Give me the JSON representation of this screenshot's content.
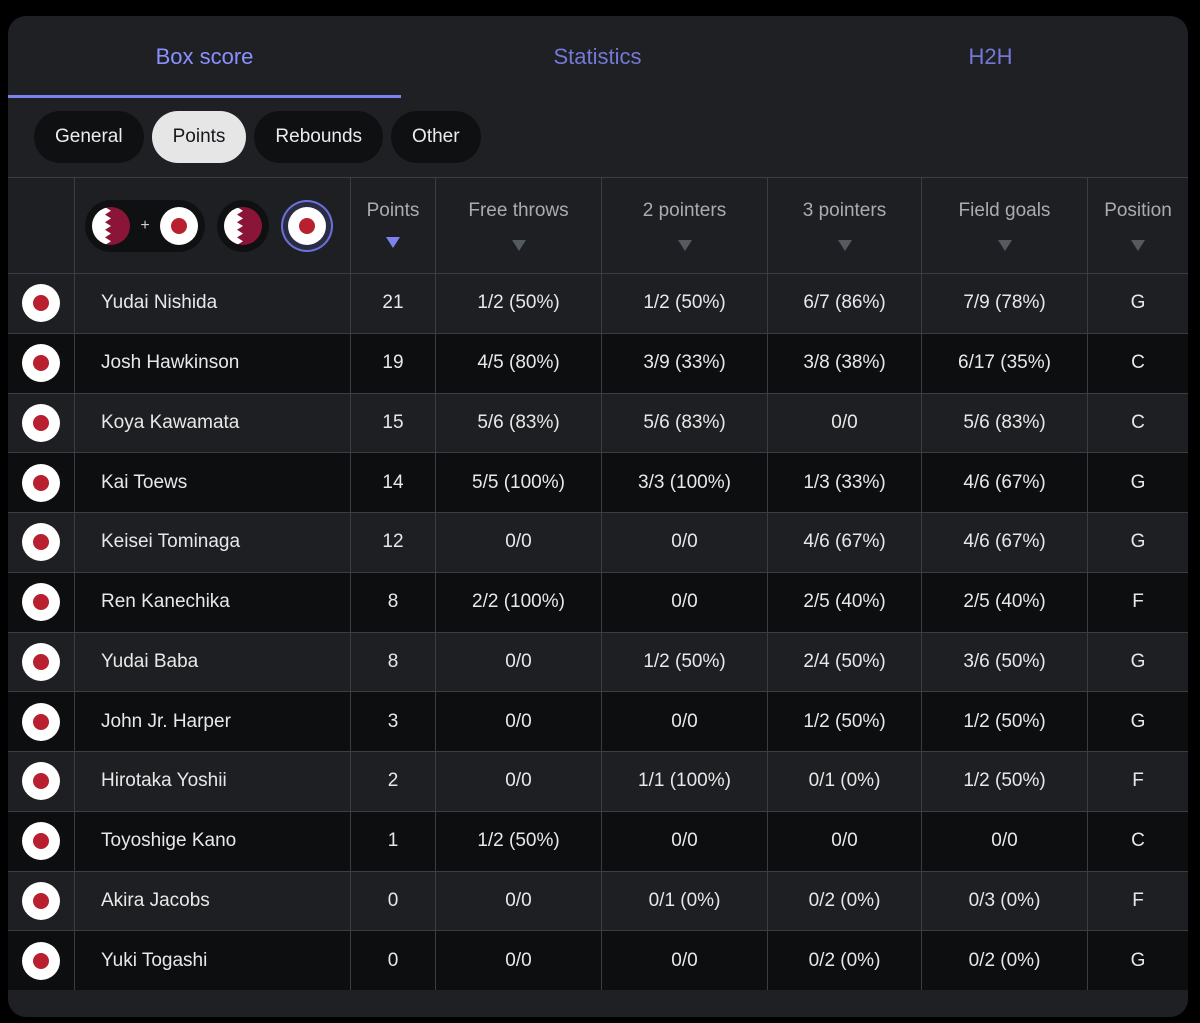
{
  "tabs": [
    {
      "label": "Box score",
      "active": true
    },
    {
      "label": "Statistics",
      "active": false
    },
    {
      "label": "H2H",
      "active": false
    }
  ],
  "pills": [
    {
      "label": "General",
      "active": false
    },
    {
      "label": "Points",
      "active": true
    },
    {
      "label": "Rebounds",
      "active": false
    },
    {
      "label": "Other",
      "active": false
    }
  ],
  "team_filters": [
    {
      "icon": "qatar-flag-plus-japan-flag-icon",
      "selected": false
    },
    {
      "icon": "qatar-flag-icon",
      "selected": false
    },
    {
      "icon": "japan-flag-icon",
      "selected": true
    }
  ],
  "columns": {
    "points": "Points",
    "free_throws": "Free throws",
    "two_pointers": "2 pointers",
    "three_pointers": "3 pointers",
    "field_goals": "Field goals",
    "position": "Position"
  },
  "sorted_column": "points",
  "colors": {
    "accent": "#7d82ee",
    "japan_red": "#b8202f",
    "qatar_maroon": "#8a1538"
  },
  "players": [
    {
      "name": "Yudai Nishida",
      "points": "21",
      "ft": "1/2 (50%)",
      "two": "1/2 (50%)",
      "three": "6/7 (86%)",
      "fg": "7/9 (78%)",
      "pos": "G"
    },
    {
      "name": "Josh Hawkinson",
      "points": "19",
      "ft": "4/5 (80%)",
      "two": "3/9 (33%)",
      "three": "3/8 (38%)",
      "fg": "6/17 (35%)",
      "pos": "C"
    },
    {
      "name": "Koya Kawamata",
      "points": "15",
      "ft": "5/6 (83%)",
      "two": "5/6 (83%)",
      "three": "0/0",
      "fg": "5/6 (83%)",
      "pos": "C"
    },
    {
      "name": "Kai Toews",
      "points": "14",
      "ft": "5/5 (100%)",
      "two": "3/3 (100%)",
      "three": "1/3 (33%)",
      "fg": "4/6 (67%)",
      "pos": "G"
    },
    {
      "name": "Keisei Tominaga",
      "points": "12",
      "ft": "0/0",
      "two": "0/0",
      "three": "4/6 (67%)",
      "fg": "4/6 (67%)",
      "pos": "G"
    },
    {
      "name": "Ren Kanechika",
      "points": "8",
      "ft": "2/2 (100%)",
      "two": "0/0",
      "three": "2/5 (40%)",
      "fg": "2/5 (40%)",
      "pos": "F"
    },
    {
      "name": "Yudai Baba",
      "points": "8",
      "ft": "0/0",
      "two": "1/2 (50%)",
      "three": "2/4 (50%)",
      "fg": "3/6 (50%)",
      "pos": "G"
    },
    {
      "name": "John Jr. Harper",
      "points": "3",
      "ft": "0/0",
      "two": "0/0",
      "three": "1/2 (50%)",
      "fg": "1/2 (50%)",
      "pos": "G"
    },
    {
      "name": "Hirotaka Yoshii",
      "points": "2",
      "ft": "0/0",
      "two": "1/1 (100%)",
      "three": "0/1 (0%)",
      "fg": "1/2 (50%)",
      "pos": "F"
    },
    {
      "name": "Toyoshige Kano",
      "points": "1",
      "ft": "1/2 (50%)",
      "two": "0/0",
      "three": "0/0",
      "fg": "0/0",
      "pos": "C"
    },
    {
      "name": "Akira Jacobs",
      "points": "0",
      "ft": "0/0",
      "two": "0/1 (0%)",
      "three": "0/2 (0%)",
      "fg": "0/3 (0%)",
      "pos": "F"
    },
    {
      "name": "Yuki Togashi",
      "points": "0",
      "ft": "0/0",
      "two": "0/0",
      "three": "0/2 (0%)",
      "fg": "0/2 (0%)",
      "pos": "G"
    }
  ]
}
